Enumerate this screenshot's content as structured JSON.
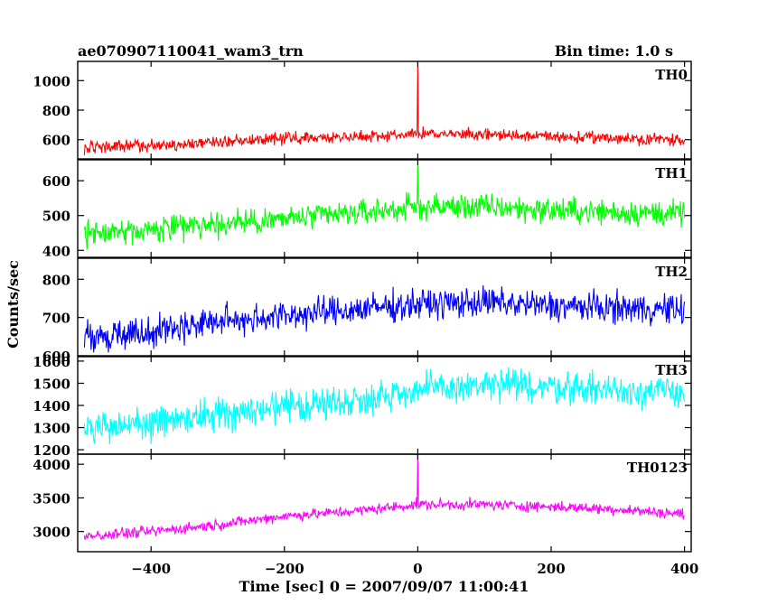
{
  "chart_data": {
    "type": "line",
    "title": "ae070907110041_wam3_trn",
    "subtitle": "Bin time: 1.0 s",
    "xlabel": "Time [sec] 0 = 2007/09/07 11:00:41",
    "ylabel": "Counts/sec",
    "xlim": [
      -510,
      410
    ],
    "xticks": [
      -400,
      -200,
      0,
      200,
      400
    ],
    "grid": false,
    "series": [
      {
        "name": "TH0",
        "color": "#ff0000",
        "ylim": [
          470,
          1130
        ],
        "yticks": [
          600,
          800,
          1000
        ],
        "x": [
          -500,
          -400,
          -300,
          -250,
          -200,
          -100,
          0,
          100,
          200,
          300,
          400
        ],
        "values": [
          545,
          560,
          585,
          600,
          610,
          620,
          640,
          635,
          620,
          610,
          600
        ],
        "noise": 30,
        "spike": {
          "x": 0,
          "value": 1130
        }
      },
      {
        "name": "TH1",
        "color": "#00ff00",
        "ylim": [
          380,
          660
        ],
        "yticks": [
          400,
          500,
          600
        ],
        "x": [
          -500,
          -400,
          -300,
          -200,
          -100,
          0,
          100,
          200,
          300,
          400
        ],
        "values": [
          450,
          460,
          475,
          490,
          505,
          525,
          525,
          515,
          510,
          505
        ],
        "noise": 28,
        "spike": {
          "x": 0,
          "value": 650
        }
      },
      {
        "name": "TH2",
        "color": "#0000ff",
        "ylim": [
          600,
          855
        ],
        "yticks": [
          600,
          700,
          800
        ],
        "x": [
          -500,
          -400,
          -300,
          -200,
          -100,
          0,
          100,
          200,
          300,
          400
        ],
        "values": [
          650,
          665,
          690,
          705,
          720,
          735,
          740,
          730,
          725,
          720
        ],
        "noise": 30,
        "spike": null
      },
      {
        "name": "TH3",
        "color": "#00ffff",
        "ylim": [
          1180,
          1620
        ],
        "yticks": [
          1200,
          1300,
          1400,
          1500,
          1600
        ],
        "x": [
          -500,
          -400,
          -300,
          -200,
          -100,
          0,
          100,
          200,
          300,
          400
        ],
        "values": [
          1290,
          1320,
          1360,
          1390,
          1420,
          1470,
          1490,
          1485,
          1470,
          1460
        ],
        "noise": 55,
        "spike": null
      },
      {
        "name": "TH0123",
        "color": "#ff00ff",
        "ylim": [
          2700,
          4150
        ],
        "yticks": [
          3000,
          3500,
          4000
        ],
        "x": [
          -500,
          -400,
          -300,
          -200,
          -100,
          0,
          100,
          200,
          300,
          400
        ],
        "values": [
          2920,
          3000,
          3100,
          3230,
          3300,
          3400,
          3400,
          3370,
          3330,
          3260
        ],
        "noise": 60,
        "spike": {
          "x": 0,
          "value": 4150
        }
      }
    ]
  }
}
